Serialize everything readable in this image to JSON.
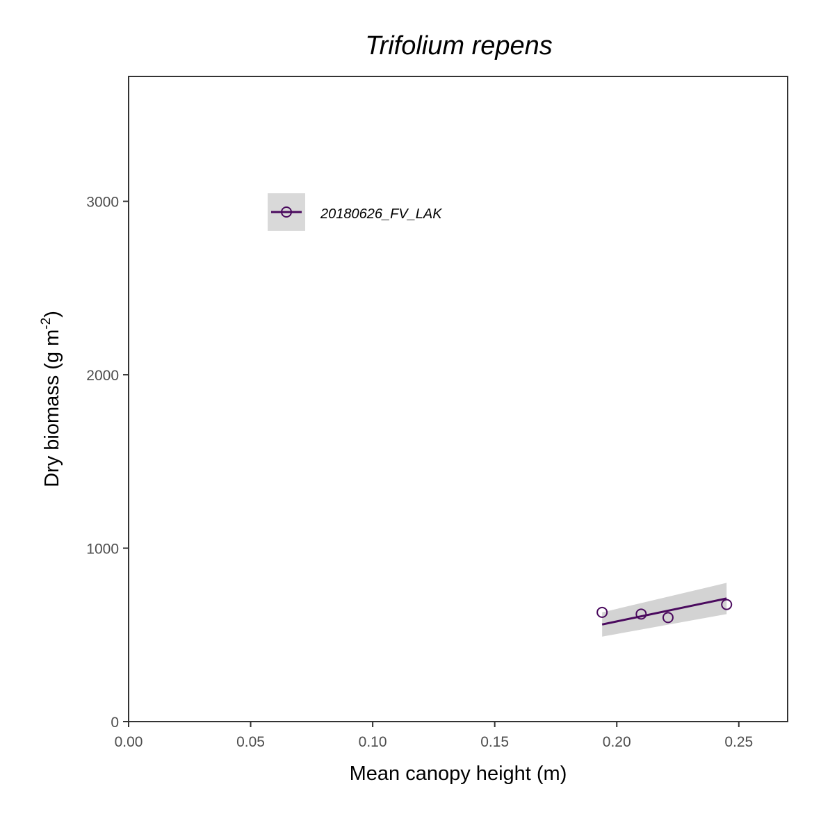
{
  "chart_data": {
    "type": "scatter",
    "title": "Trifolium repens",
    "xlabel": "Mean canopy height (m)",
    "ylabel_main": "Dry biomass (g m",
    "ylabel_sup": "-2",
    "ylabel_end": ")",
    "xlim": [
      0,
      0.27
    ],
    "ylim": [
      0,
      3720
    ],
    "x_ticks": [
      0.0,
      0.05,
      0.1,
      0.15,
      0.2,
      0.25
    ],
    "x_tick_labels": [
      "0.00",
      "0.05",
      "0.10",
      "0.15",
      "0.20",
      "0.25"
    ],
    "y_ticks": [
      0,
      1000,
      2000,
      3000
    ],
    "y_tick_labels": [
      "0",
      "1000",
      "2000",
      "3000"
    ],
    "grid": false,
    "legend_position": "top-left",
    "series": [
      {
        "name": "20180626_FV_LAK",
        "color": "#4a0a5e",
        "points": [
          {
            "x": 0.194,
            "y": 630
          },
          {
            "x": 0.21,
            "y": 620
          },
          {
            "x": 0.221,
            "y": 600
          },
          {
            "x": 0.245,
            "y": 675
          }
        ],
        "fit": {
          "x": [
            0.194,
            0.245
          ],
          "y": [
            560,
            710
          ],
          "ci_lower": [
            490,
            620
          ],
          "ci_upper": [
            630,
            800
          ]
        }
      }
    ],
    "ci_color": "#d3d3d3"
  }
}
